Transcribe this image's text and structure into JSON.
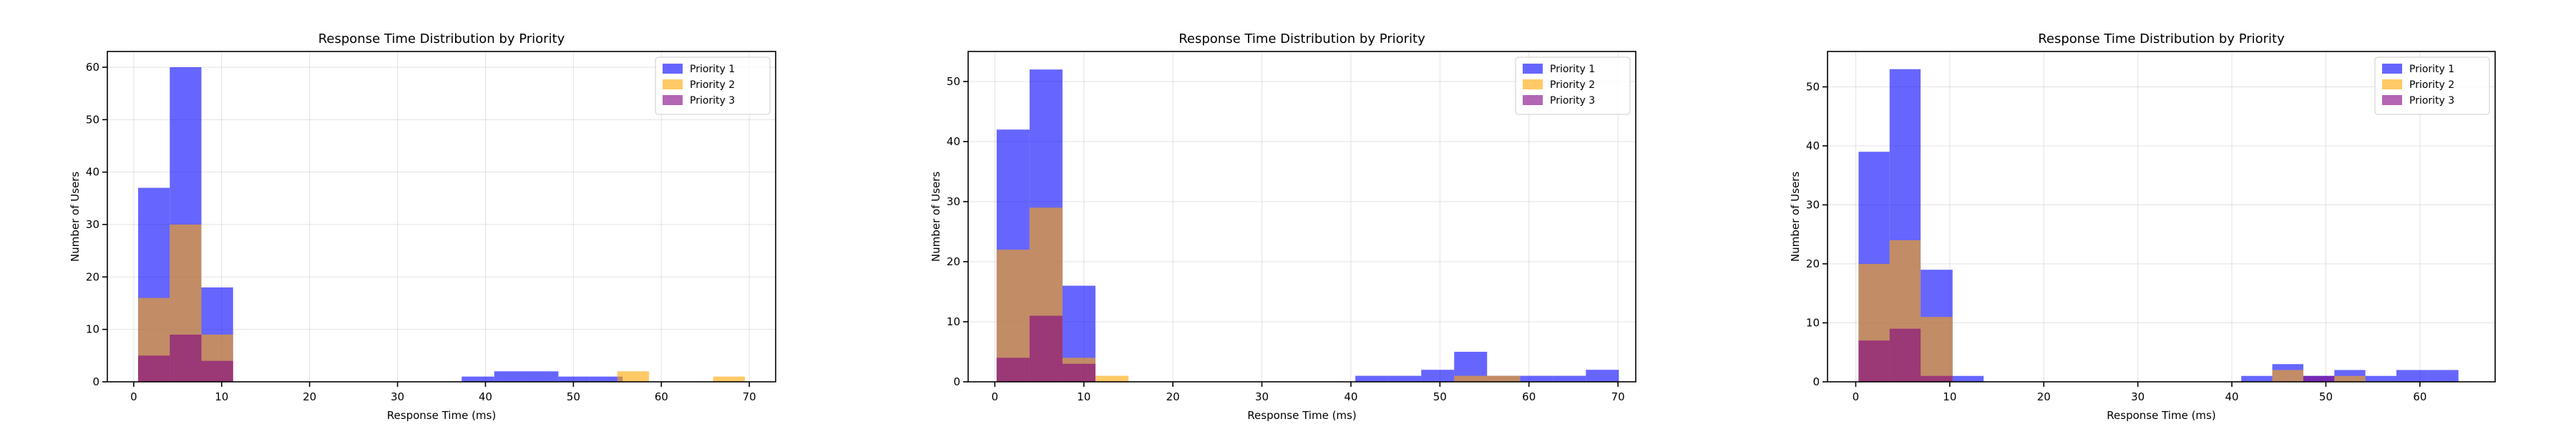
{
  "figure": {
    "colors": {
      "Priority 1": "#0000ff",
      "Priority 2": "#ffa500",
      "Priority 3": "#800080",
      "grid": "#b0b0b0"
    }
  },
  "chart_data": [
    {
      "type": "bar",
      "subtype": "overlapping-histogram",
      "title": "Response Time Distribution by Priority",
      "xlabel": "Response Time (ms)",
      "ylabel": "Number of Users",
      "xlim": [
        -3,
        73
      ],
      "ylim": [
        0,
        63
      ],
      "xticks": [
        0,
        10,
        20,
        30,
        40,
        50,
        60,
        70
      ],
      "yticks": [
        0,
        10,
        20,
        30,
        40,
        50,
        60
      ],
      "grid": true,
      "legend_position": "top-right",
      "opacity": 0.6,
      "series": [
        {
          "name": "Priority 1",
          "bins": [
            [
              0.5,
              4.1,
              37
            ],
            [
              4.1,
              7.7,
              60
            ],
            [
              7.7,
              11.3,
              18
            ],
            [
              37.3,
              41.0,
              1
            ],
            [
              41.0,
              44.6,
              2
            ],
            [
              44.6,
              48.3,
              2
            ],
            [
              48.3,
              51.9,
              1
            ],
            [
              51.9,
              55.6,
              1
            ]
          ]
        },
        {
          "name": "Priority 2",
          "bins": [
            [
              0.5,
              4.1,
              16
            ],
            [
              4.1,
              7.7,
              30
            ],
            [
              7.7,
              11.3,
              9
            ],
            [
              55.0,
              58.6,
              2
            ],
            [
              65.9,
              69.5,
              1
            ]
          ]
        },
        {
          "name": "Priority 3",
          "bins": [
            [
              0.5,
              4.1,
              5
            ],
            [
              4.1,
              7.7,
              9
            ],
            [
              7.7,
              11.3,
              4
            ]
          ]
        }
      ]
    },
    {
      "type": "bar",
      "subtype": "overlapping-histogram",
      "title": "Response Time Distribution by Priority",
      "xlabel": "Response Time (ms)",
      "ylabel": "Number of Users",
      "xlim": [
        -3,
        72
      ],
      "ylim": [
        0,
        55
      ],
      "xticks": [
        0,
        10,
        20,
        30,
        40,
        50,
        60,
        70
      ],
      "yticks": [
        0,
        10,
        20,
        30,
        40,
        50
      ],
      "grid": true,
      "legend_position": "top-right",
      "opacity": 0.6,
      "series": [
        {
          "name": "Priority 1",
          "bins": [
            [
              0.2,
              3.9,
              42
            ],
            [
              3.9,
              7.6,
              52
            ],
            [
              7.6,
              11.3,
              16
            ],
            [
              40.5,
              44.2,
              1
            ],
            [
              44.2,
              47.9,
              1
            ],
            [
              47.9,
              51.6,
              2
            ],
            [
              51.6,
              55.3,
              5
            ],
            [
              55.3,
              59.0,
              1
            ],
            [
              59.0,
              62.7,
              1
            ],
            [
              62.7,
              66.4,
              1
            ],
            [
              66.4,
              70.1,
              2
            ]
          ]
        },
        {
          "name": "Priority 2",
          "bins": [
            [
              0.2,
              3.9,
              22
            ],
            [
              3.9,
              7.6,
              29
            ],
            [
              7.6,
              11.3,
              4
            ],
            [
              11.3,
              15.0,
              1
            ],
            [
              51.6,
              55.3,
              1
            ],
            [
              55.3,
              59.0,
              1
            ]
          ]
        },
        {
          "name": "Priority 3",
          "bins": [
            [
              0.2,
              3.9,
              4
            ],
            [
              3.9,
              7.6,
              11
            ],
            [
              7.6,
              11.3,
              3
            ]
          ]
        }
      ]
    },
    {
      "type": "bar",
      "subtype": "overlapping-histogram",
      "title": "Response Time Distribution by Priority",
      "xlabel": "Response Time (ms)",
      "ylabel": "Number of Users",
      "xlim": [
        -3,
        68
      ],
      "ylim": [
        0,
        56
      ],
      "xticks": [
        0,
        10,
        20,
        30,
        40,
        50,
        60
      ],
      "yticks": [
        0,
        10,
        20,
        30,
        40,
        50
      ],
      "grid": true,
      "legend_position": "top-right",
      "opacity": 0.6,
      "series": [
        {
          "name": "Priority 1",
          "bins": [
            [
              0.3,
              3.6,
              39
            ],
            [
              3.6,
              6.9,
              53
            ],
            [
              6.9,
              10.3,
              19
            ],
            [
              10.3,
              13.6,
              1
            ],
            [
              41.0,
              44.3,
              1
            ],
            [
              44.3,
              47.6,
              3
            ],
            [
              47.6,
              50.9,
              1
            ],
            [
              50.9,
              54.2,
              2
            ],
            [
              54.2,
              57.5,
              1
            ],
            [
              57.5,
              60.8,
              2
            ],
            [
              60.8,
              64.1,
              2
            ]
          ]
        },
        {
          "name": "Priority 2",
          "bins": [
            [
              0.3,
              3.6,
              20
            ],
            [
              3.6,
              6.9,
              24
            ],
            [
              6.9,
              10.3,
              11
            ],
            [
              44.3,
              47.6,
              2
            ],
            [
              50.9,
              54.2,
              1
            ]
          ]
        },
        {
          "name": "Priority 3",
          "bins": [
            [
              0.3,
              3.6,
              7
            ],
            [
              3.6,
              6.9,
              9
            ],
            [
              6.9,
              10.3,
              1
            ],
            [
              47.6,
              50.9,
              1
            ]
          ]
        }
      ]
    }
  ]
}
